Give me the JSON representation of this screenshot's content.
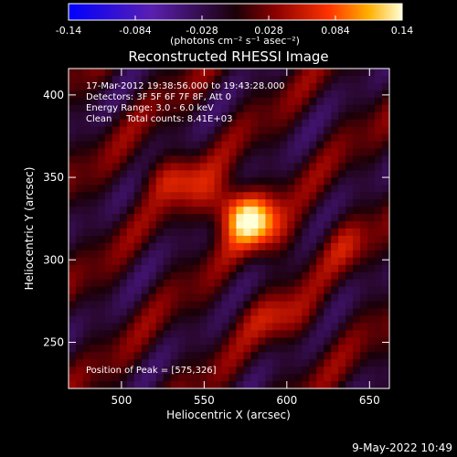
{
  "colorbar": {
    "ticks": [
      "-0.14",
      "-0.084",
      "-0.028",
      "0.028",
      "0.084",
      "0.14"
    ],
    "units_label": "(photons cm⁻² s⁻¹ asec⁻²)",
    "vmin": -0.14,
    "vmax": 0.14
  },
  "plot": {
    "title": "Reconstructed RHESSI Image",
    "info_lines": [
      "17-Mar-2012 19:38:56.000 to 19:43:28.000",
      "Detectors: 3F 5F 6F 7F 8F, Att 0",
      "Energy Range: 3.0 - 6.0 keV",
      "Clean     Total counts: 8.41E+03"
    ],
    "peak_label": "Position of Peak = [575,326]",
    "footer_date": "9-May-2022 10:49"
  },
  "chart_data": {
    "type": "heatmap",
    "title": "Reconstructed RHESSI Image",
    "xlabel": "Heliocentric X (arcsec)",
    "ylabel": "Heliocentric Y (arcsec)",
    "xlim": [
      468,
      662
    ],
    "ylim": [
      222,
      416
    ],
    "x_ticks": [
      500,
      550,
      600,
      650
    ],
    "y_ticks": [
      250,
      300,
      350,
      400
    ],
    "x_tick_labels": [
      "500",
      "550",
      "600",
      "650"
    ],
    "y_tick_labels": [
      "250",
      "300",
      "350",
      "400"
    ],
    "peak": {
      "x": 575,
      "y": 326,
      "value": 0.14
    },
    "colormap": "hot-blue",
    "grid": false
  }
}
